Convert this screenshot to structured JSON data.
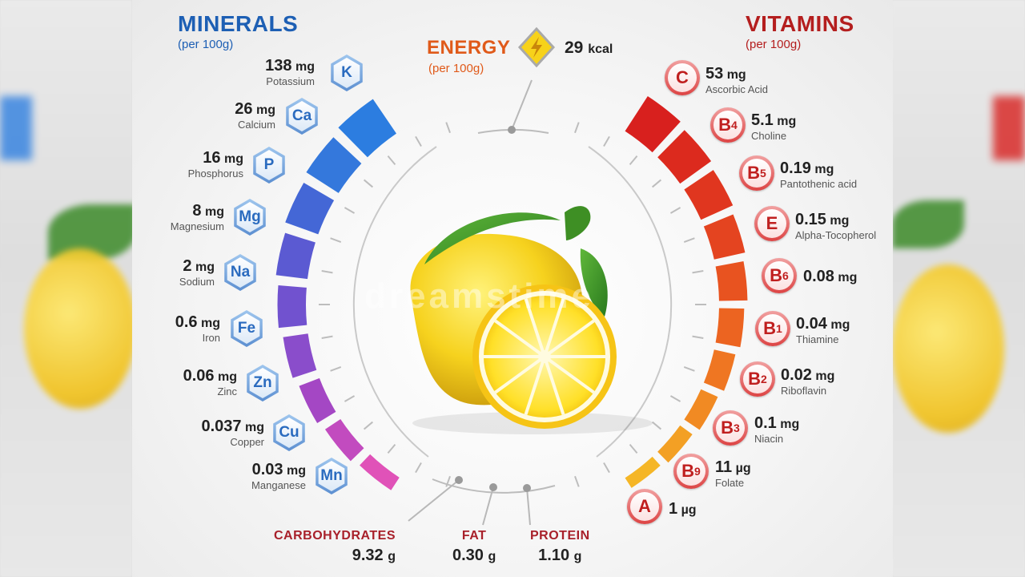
{
  "minerals": {
    "title": "MINERALS",
    "subtitle": "(per 100g)",
    "items": [
      {
        "value": "138",
        "unit": "mg",
        "name": "Potassium",
        "symbol": "K"
      },
      {
        "value": "26",
        "unit": "mg",
        "name": "Calcium",
        "symbol": "Ca"
      },
      {
        "value": "16",
        "unit": "mg",
        "name": "Phosphorus",
        "symbol": "P"
      },
      {
        "value": "8",
        "unit": "mg",
        "name": "Magnesium",
        "symbol": "Mg"
      },
      {
        "value": "2",
        "unit": "mg",
        "name": "Sodium",
        "symbol": "Na"
      },
      {
        "value": "0.6",
        "unit": "mg",
        "name": "Iron",
        "symbol": "Fe"
      },
      {
        "value": "0.06",
        "unit": "mg",
        "name": "Zinc",
        "symbol": "Zn"
      },
      {
        "value": "0.037",
        "unit": "mg",
        "name": "Copper",
        "symbol": "Cu"
      },
      {
        "value": "0.03",
        "unit": "mg",
        "name": "Manganese",
        "symbol": "Mn"
      }
    ],
    "bar_colors": [
      "#2c7de0",
      "#3478dc",
      "#4467d6",
      "#5b5ad2",
      "#7152cf",
      "#8a4dcb",
      "#a447c4",
      "#c24bbf",
      "#e052b8"
    ]
  },
  "vitamins": {
    "title": "VITAMINS",
    "subtitle": "(per 100g)",
    "items": [
      {
        "value": "53",
        "unit": "mg",
        "name": "Ascorbic Acid",
        "symbol": "C",
        "sub": ""
      },
      {
        "value": "5.1",
        "unit": "mg",
        "name": "Choline",
        "symbol": "B",
        "sub": "4"
      },
      {
        "value": "0.19",
        "unit": "mg",
        "name": "Pantothenic acid",
        "symbol": "B",
        "sub": "5"
      },
      {
        "value": "0.15",
        "unit": "mg",
        "name": "Alpha-Tocopherol",
        "symbol": "E",
        "sub": ""
      },
      {
        "value": "0.08",
        "unit": "mg",
        "name": "",
        "symbol": "B",
        "sub": "6"
      },
      {
        "value": "0.04",
        "unit": "mg",
        "name": "Thiamine",
        "symbol": "B",
        "sub": "1"
      },
      {
        "value": "0.02",
        "unit": "mg",
        "name": "Riboflavin",
        "symbol": "B",
        "sub": "2"
      },
      {
        "value": "0.1",
        "unit": "mg",
        "name": "Niacin",
        "symbol": "B",
        "sub": "3"
      },
      {
        "value": "11",
        "unit": "µg",
        "name": "Folate",
        "symbol": "B",
        "sub": "9"
      },
      {
        "value": "1",
        "unit": "µg",
        "name": "",
        "symbol": "A",
        "sub": ""
      }
    ],
    "bar_colors": [
      "#d8201e",
      "#dc2a1e",
      "#e0361f",
      "#e44420",
      "#e85320",
      "#ec6421",
      "#ef7622",
      "#f18a23",
      "#f3a024",
      "#f5b626"
    ]
  },
  "energy": {
    "title": "ENERGY",
    "subtitle": "(per 100g)",
    "value": "29",
    "unit": "kcal"
  },
  "macros": [
    {
      "label": "CARBOHYDRATES",
      "value": "9.32",
      "unit": "g"
    },
    {
      "label": "FAT",
      "value": "0.30",
      "unit": "g"
    },
    {
      "label": "PROTEIN",
      "value": "1.10",
      "unit": "g"
    }
  ],
  "watermark": "dreamstime"
}
